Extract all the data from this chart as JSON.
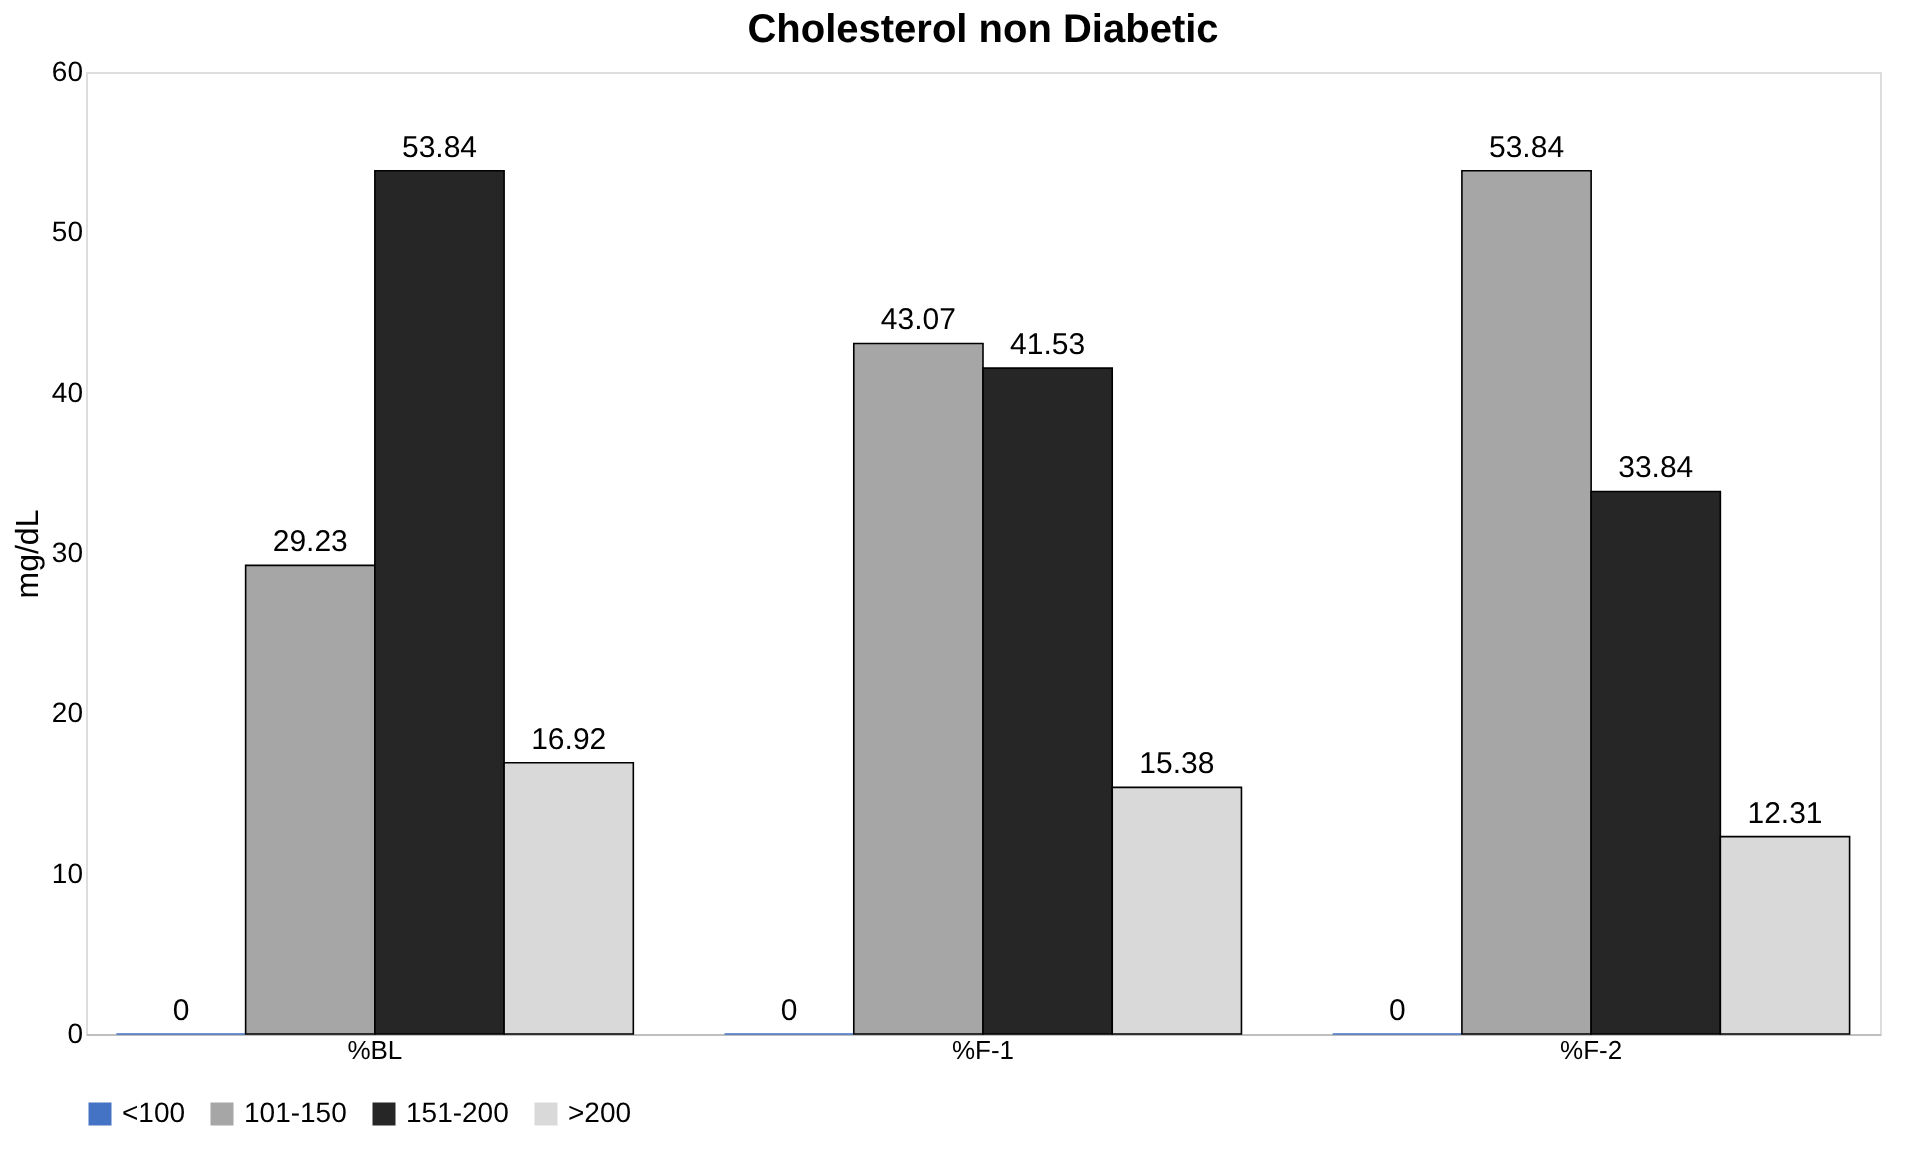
{
  "chart_data": {
    "type": "bar",
    "title": "Cholesterol non Diabetic",
    "ylabel": "mg/dL",
    "categories": [
      "%BL",
      "%F-1",
      "%F-2"
    ],
    "series": [
      {
        "name": "<100",
        "color": "#4472c4",
        "values": [
          0,
          0,
          0
        ]
      },
      {
        "name": "101-150",
        "color": "#a6a6a6",
        "values": [
          29.23,
          43.07,
          53.84
        ]
      },
      {
        "name": "151-200",
        "color": "#262626",
        "values": [
          53.84,
          41.53,
          33.84
        ]
      },
      {
        "name": ">200",
        "color": "#d9d9d9",
        "values": [
          16.92,
          15.38,
          12.31
        ]
      }
    ],
    "ylim": [
      0,
      60
    ],
    "yticks": [
      0,
      10,
      20,
      30,
      40,
      50,
      60
    ],
    "grid": false,
    "legend": "bottom",
    "data_labels": true
  }
}
